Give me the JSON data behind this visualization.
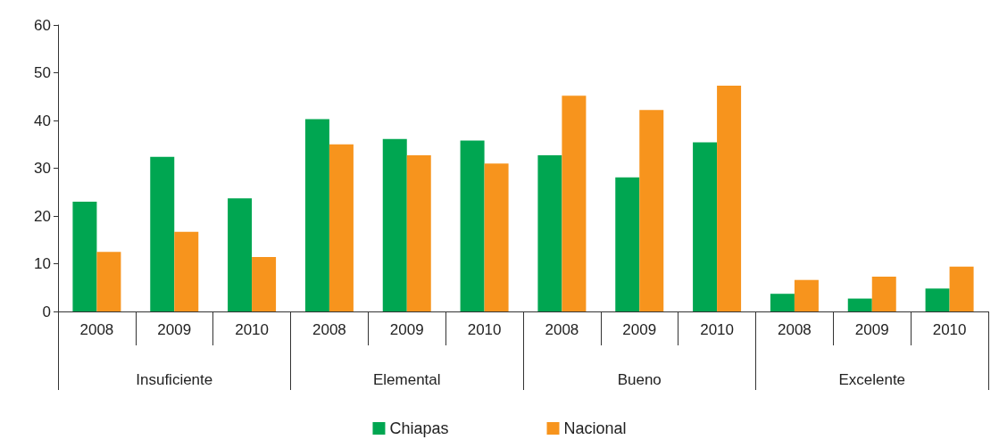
{
  "chart_data": {
    "type": "bar",
    "categories": [
      "2008",
      "2009",
      "2010",
      "2008",
      "2009",
      "2010",
      "2008",
      "2009",
      "2010",
      "2008",
      "2009",
      "2010"
    ],
    "annotations": [
      "Insuficiente",
      "Elemental",
      "Bueno",
      "Excelente"
    ],
    "series": [
      {
        "name": "Chiapas",
        "color": "#00a651",
        "values": [
          23,
          32.4,
          23.7,
          40.3,
          36.1,
          35.8,
          32.7,
          28.1,
          35.4,
          3.7,
          2.7,
          4.8
        ]
      },
      {
        "name": "Nacional",
        "color": "#f7941d",
        "values": [
          12.5,
          16.7,
          11.4,
          35,
          32.7,
          31,
          45.2,
          42.2,
          47.3,
          6.6,
          7.3,
          9.4
        ]
      }
    ],
    "ylim": [
      0,
      60
    ],
    "yticks": [
      0,
      10,
      20,
      30,
      40,
      50,
      60
    ],
    "grid": false,
    "legend": "bottom"
  }
}
